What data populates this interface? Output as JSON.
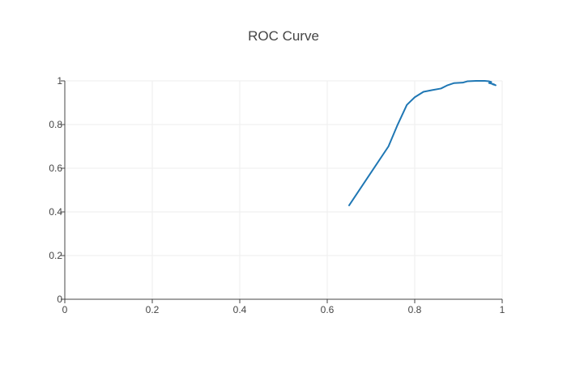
{
  "chart_data": {
    "type": "line",
    "title": "ROC Curve",
    "xlabel": "",
    "ylabel": "",
    "xlim": [
      0,
      1
    ],
    "ylim": [
      0,
      1
    ],
    "grid": true,
    "x_ticks": [
      "0",
      "0.2",
      "0.4",
      "0.6",
      "0.8",
      "1"
    ],
    "y_ticks": [
      "0",
      "0.2",
      "0.4",
      "0.6",
      "0.8",
      "1"
    ],
    "series": [
      {
        "color": "#1f77b4",
        "x": [
          0.65,
          0.695,
          0.74,
          0.76,
          0.782,
          0.8,
          0.82,
          0.84,
          0.86,
          0.875,
          0.89,
          0.91,
          0.92,
          0.94,
          0.96,
          0.97,
          0.975,
          0.97,
          0.98,
          0.985,
          0.975,
          0.98
        ],
        "y": [
          0.43,
          0.565,
          0.7,
          0.795,
          0.89,
          0.925,
          0.95,
          0.958,
          0.965,
          0.98,
          0.99,
          0.992,
          0.998,
          1.0,
          1.0,
          0.998,
          0.995,
          0.99,
          0.985,
          0.98,
          0.988,
          0.983
        ]
      }
    ]
  }
}
